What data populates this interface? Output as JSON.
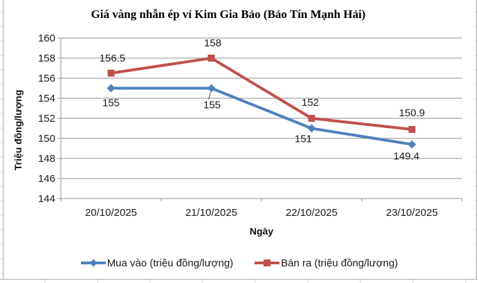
{
  "chart_data": {
    "type": "line",
    "title": "Giá vàng nhẫn ép vỉ Kim Gia Bảo (Bảo Tín Mạnh Hải)",
    "xlabel": "Ngày",
    "ylabel": "Triệu đồng/lượng",
    "categories": [
      "20/10/2025",
      "21/10/2025",
      "22/10/2025",
      "23/10/2025"
    ],
    "series": [
      {
        "name": "Mua vào (triệu đồng/lượng)",
        "color": "#4F81BD",
        "marker": "diamond",
        "values": [
          155,
          155,
          151,
          149.4
        ],
        "labels": [
          "155",
          "155",
          "151",
          "149.4"
        ],
        "label_position": "below",
        "label_offsets": [
          [
            0,
            21
          ],
          [
            1,
            24
          ],
          [
            -12,
            15
          ],
          [
            -8,
            17
          ]
        ]
      },
      {
        "name": "Bán ra (triệu đồng/lượng)",
        "color": "#C0504D",
        "marker": "square",
        "values": [
          156.5,
          158,
          152,
          150.9
        ],
        "labels": [
          "156.5",
          "158",
          "152",
          "150.9"
        ],
        "label_position": "above",
        "label_offsets": [
          [
            2,
            -22
          ],
          [
            2,
            -22
          ],
          [
            -2,
            -23
          ],
          [
            0,
            -24
          ]
        ]
      }
    ],
    "ylim": [
      144,
      160
    ],
    "ytick_step": 2,
    "grid": true,
    "legend_position": "bottom",
    "moved_label": {
      "series": 0,
      "point": 1
    }
  }
}
